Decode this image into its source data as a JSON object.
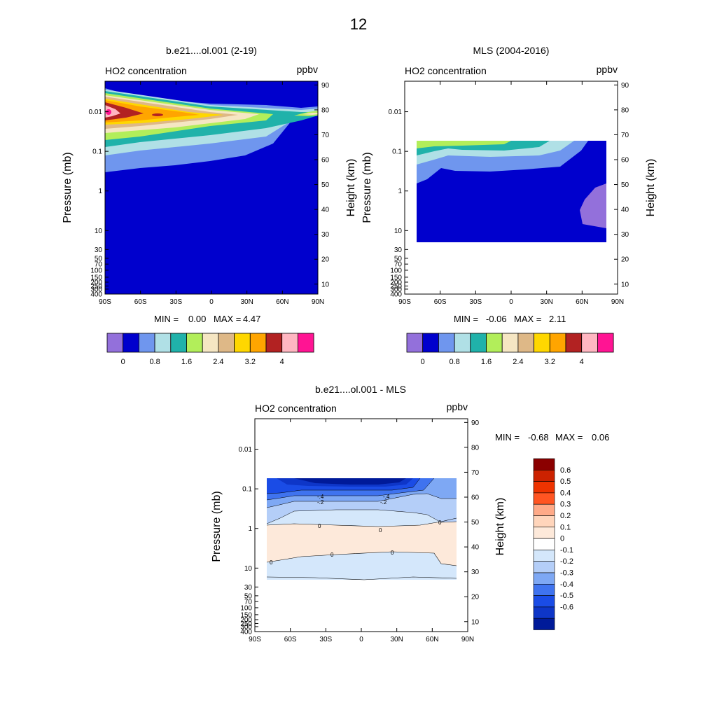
{
  "figure_title": "12",
  "chart_data": [
    {
      "type": "heatmap",
      "panel": "model",
      "title": "b.e21....ol.001 (2-19)",
      "left_label": "HO2 concentration",
      "right_label": "ppbv",
      "ylabel": "Pressure (mb)",
      "ylabel_right": "Height (km)",
      "x_ticks": [
        "90S",
        "60S",
        "30S",
        "0",
        "30N",
        "60N",
        "90N"
      ],
      "y_ticks": [
        "0.01",
        "0.1",
        "1",
        "10",
        "30",
        "50",
        "70",
        "100",
        "150",
        "200",
        "250",
        "300",
        "400"
      ],
      "y_ticks_right": [
        "90",
        "80",
        "70",
        "60",
        "50",
        "40",
        "30",
        "20",
        "10"
      ],
      "min_label": "MIN =",
      "min_value": "0.00",
      "max_label": "MAX =",
      "max_value": "4.47",
      "colorbar_labels": [
        "0",
        "0.8",
        "1.6",
        "2.4",
        "3.2",
        "4"
      ],
      "zmin": 0.0,
      "zmax": 4.47
    },
    {
      "type": "heatmap",
      "panel": "obs",
      "title": "MLS (2004-2016)",
      "left_label": "HO2 concentration",
      "right_label": "ppbv",
      "ylabel": "Pressure (mb)",
      "ylabel_right": "Height (km)",
      "x_ticks": [
        "90S",
        "60S",
        "30S",
        "0",
        "30N",
        "60N",
        "90N"
      ],
      "y_ticks": [
        "0.01",
        "0.1",
        "1",
        "10",
        "30",
        "50",
        "70",
        "100",
        "150",
        "200",
        "250",
        "300",
        "400"
      ],
      "y_ticks_right": [
        "90",
        "80",
        "70",
        "60",
        "50",
        "40",
        "30",
        "20",
        "10"
      ],
      "min_label": "MIN =",
      "min_value": "-0.06",
      "max_label": "MAX =",
      "max_value": "2.11",
      "colorbar_labels": [
        "0",
        "0.8",
        "1.6",
        "2.4",
        "3.2",
        "4"
      ],
      "zmin": -0.06,
      "zmax": 2.11,
      "data_lat_range": [
        -80,
        80
      ],
      "data_pressure_range": [
        0.05,
        22
      ]
    },
    {
      "type": "heatmap",
      "panel": "diff",
      "title": "b.e21....ol.001 - MLS",
      "left_label": "HO2 concentration",
      "right_label": "ppbv",
      "ylabel": "Pressure (mb)",
      "ylabel_right": "Height (km)",
      "x_ticks": [
        "90S",
        "60S",
        "30S",
        "0",
        "30N",
        "60N",
        "90N"
      ],
      "y_ticks": [
        "0.01",
        "0.1",
        "1",
        "10",
        "30",
        "50",
        "70",
        "100",
        "150",
        "200",
        "250",
        "300",
        "400"
      ],
      "y_ticks_right": [
        "90",
        "80",
        "70",
        "60",
        "50",
        "40",
        "30",
        "20",
        "10"
      ],
      "min_label": "MIN =",
      "min_value": "-0.68",
      "max_label": "MAX =",
      "max_value": "0.06",
      "colorbar_labels": [
        "0.6",
        "0.5",
        "0.4",
        "0.3",
        "0.2",
        "0.1",
        "0",
        "-0.1",
        "-0.2",
        "-0.3",
        "-0.4",
        "-0.5",
        "-0.6"
      ],
      "contour_labels": [
        "-.4",
        "-.4",
        "-.2",
        "-.2",
        "0",
        "0",
        "0",
        "0",
        "0",
        "0"
      ],
      "zmin": -0.68,
      "zmax": 0.06,
      "data_lat_range": [
        -80,
        80
      ],
      "data_pressure_range": [
        0.05,
        22
      ]
    }
  ],
  "colors": {
    "seq": [
      "#9370db",
      "#0000cd",
      "#6f96ee",
      "#b0e0e6",
      "#20b2aa",
      "#b2ee5a",
      "#f5e6c3",
      "#deb887",
      "#ffd700",
      "#ffa500",
      "#b22222",
      "#ffb6c1",
      "#ff1493"
    ],
    "div": [
      "#8b0000",
      "#cc2200",
      "#ee3300",
      "#ff5522",
      "#ffaa88",
      "#ffd5bb",
      "#fde9da",
      "#ffffff",
      "#d4e7fb",
      "#b4cef8",
      "#7ea8f4",
      "#3f73ef",
      "#1a4ce6",
      "#0e36c8",
      "#001a99"
    ]
  }
}
